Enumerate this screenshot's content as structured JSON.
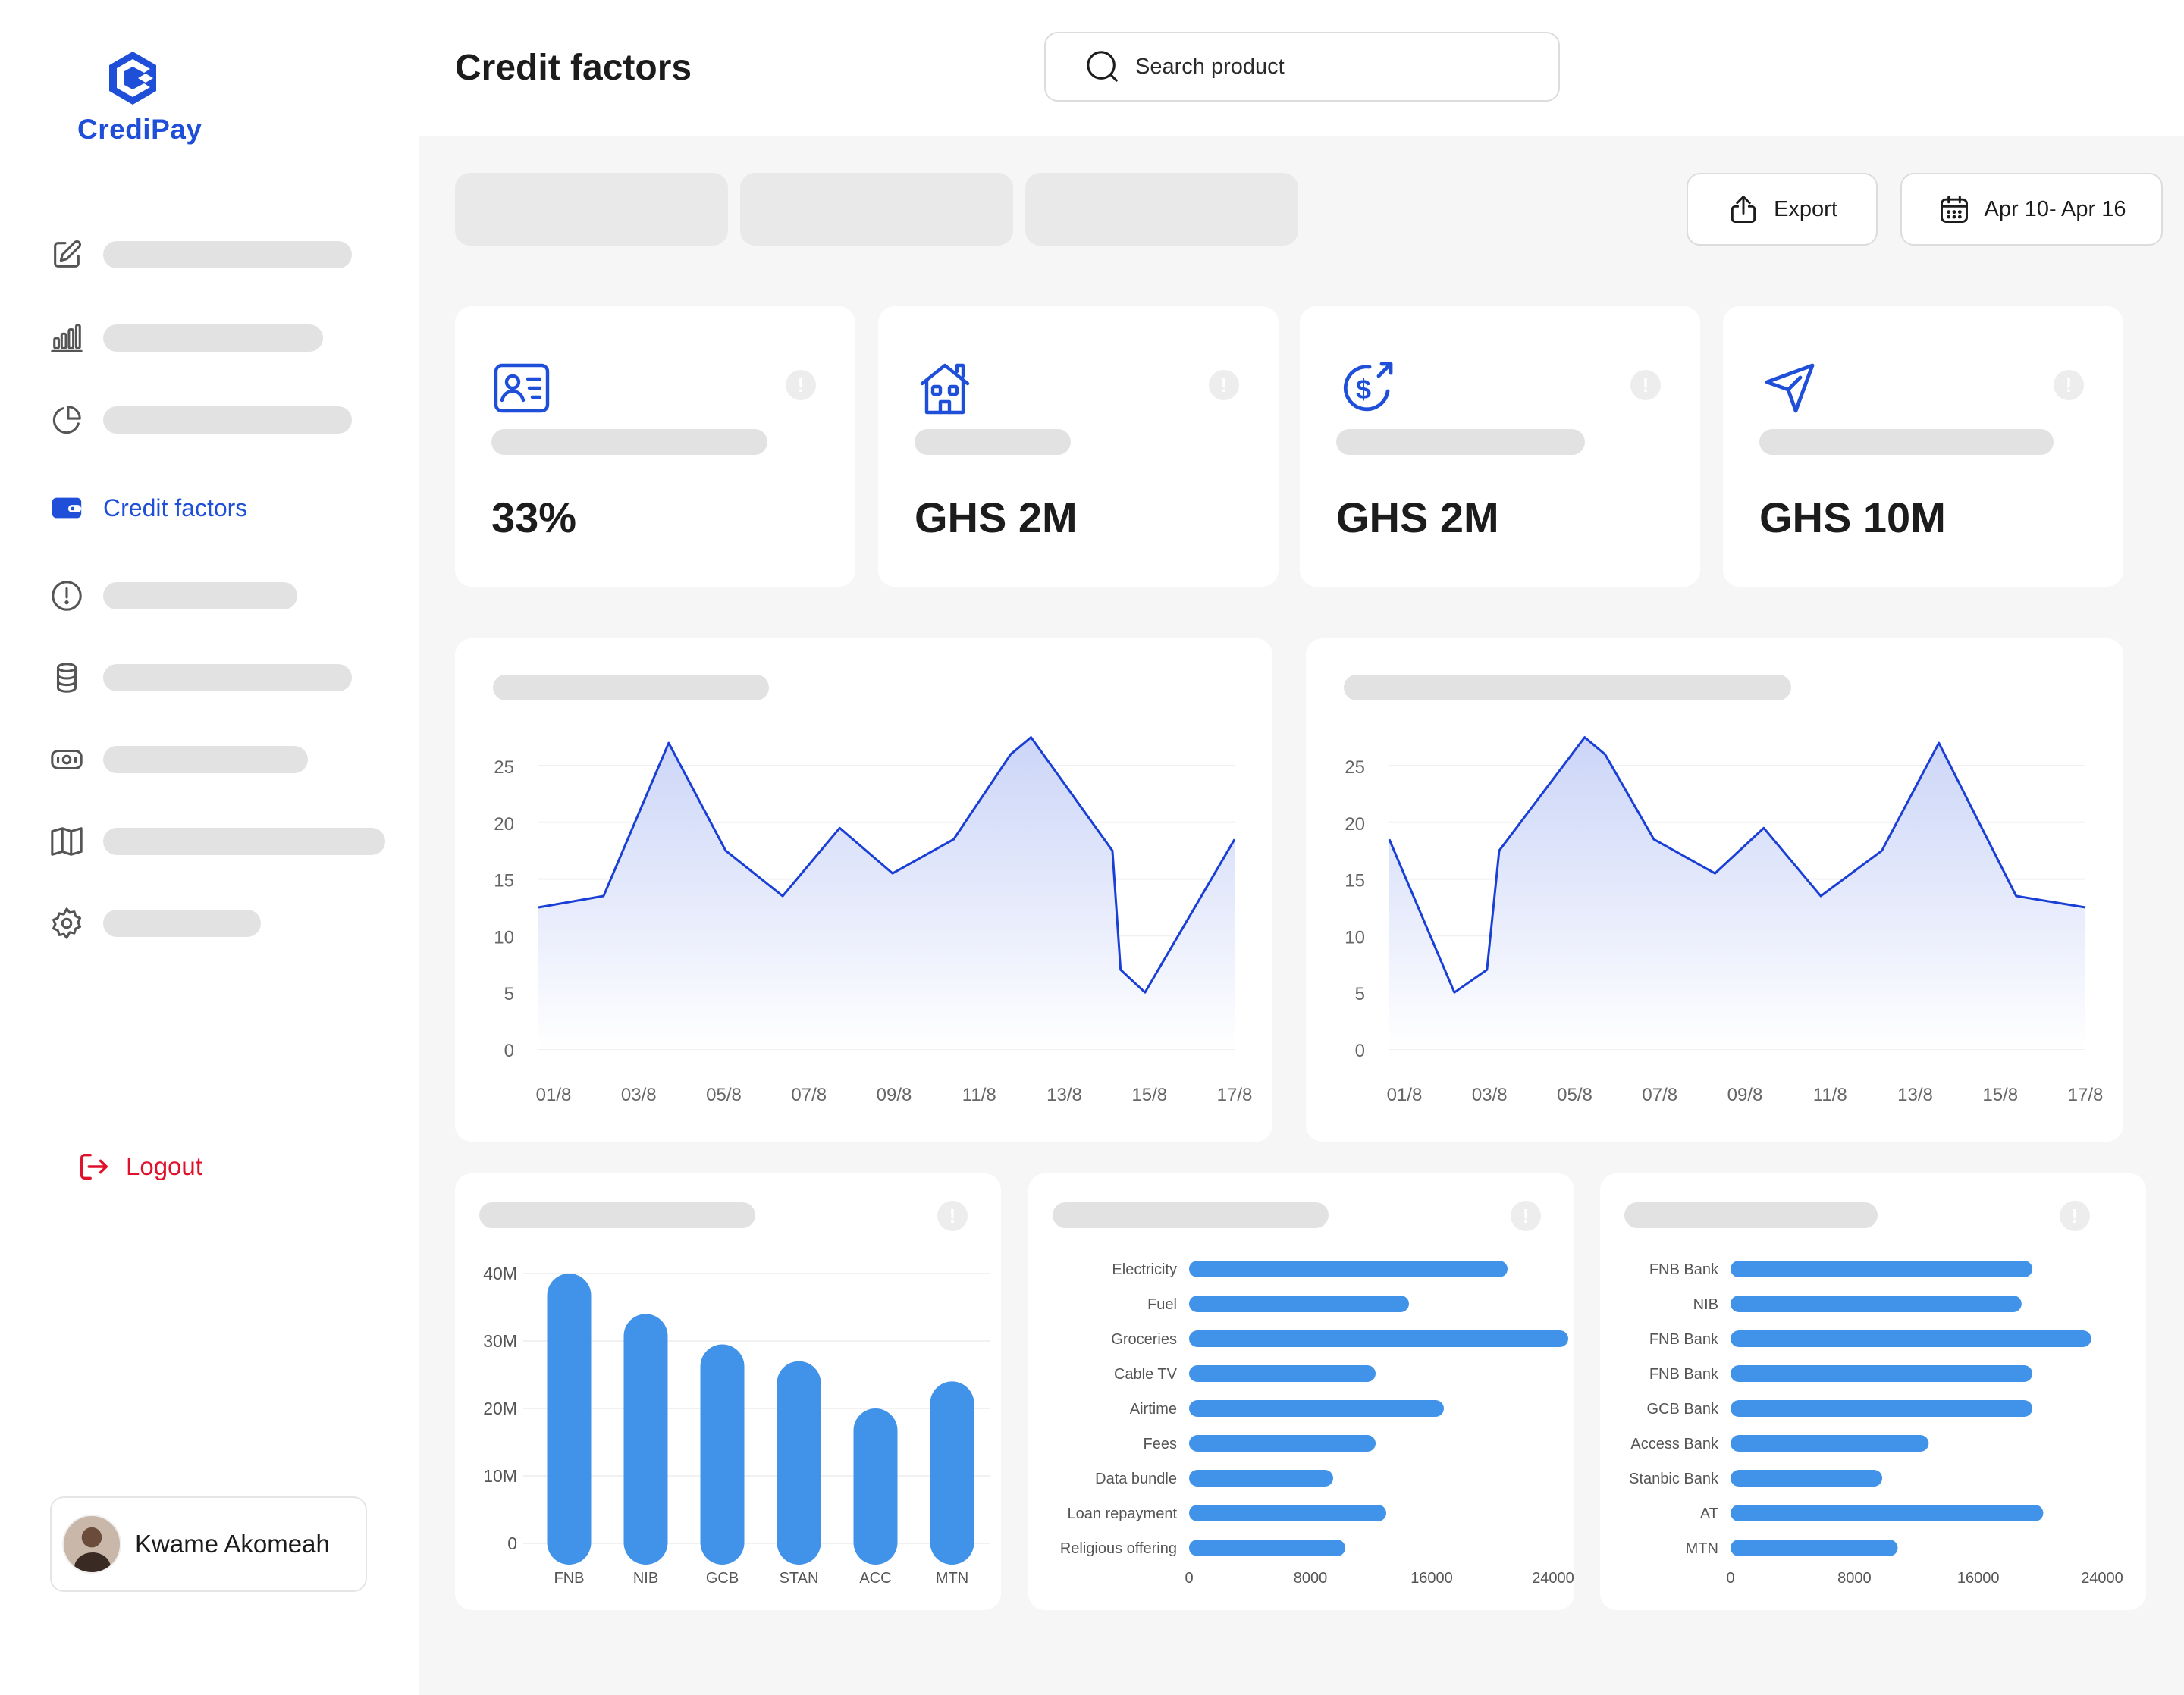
{
  "brand": {
    "name": "CrediPay",
    "color": "#1f4fd8"
  },
  "sidebar": {
    "items": [
      {
        "icon": "edit-icon",
        "active": false
      },
      {
        "icon": "bar-chart-icon",
        "active": false
      },
      {
        "icon": "pie-chart-icon",
        "active": false
      },
      {
        "icon": "wallet-icon",
        "active": true,
        "label": "Credit factors"
      },
      {
        "icon": "alert-circle-icon",
        "active": false
      },
      {
        "icon": "database-icon",
        "active": false
      },
      {
        "icon": "cash-icon",
        "active": false
      },
      {
        "icon": "book-icon",
        "active": false
      },
      {
        "icon": "settings-icon",
        "active": false
      }
    ],
    "logout_label": "Logout",
    "user_name": "Kwame Akomeah"
  },
  "header": {
    "title": "Credit factors",
    "search_placeholder": "Search product"
  },
  "toolbar": {
    "export_label": "Export",
    "date_range": "Apr 10- Apr 16"
  },
  "stats": [
    {
      "icon": "id-card-icon",
      "value": "33%"
    },
    {
      "icon": "house-icon",
      "value": "GHS 2M"
    },
    {
      "icon": "dollar-refresh-icon",
      "value": "GHS 2M"
    },
    {
      "icon": "send-icon",
      "value": "GHS 10M"
    }
  ],
  "info_glyph": "!",
  "chart_data": [
    {
      "type": "area",
      "x_labels": [
        "01/8",
        "03/8",
        "05/8",
        "07/8",
        "09/8",
        "11/8",
        "13/8",
        "15/8",
        "17/8"
      ],
      "ylim": [
        0,
        25
      ],
      "yticks": [
        0,
        5,
        10,
        15,
        20,
        25
      ],
      "points": [
        [
          0,
          12.5
        ],
        [
          1.6,
          13.5
        ],
        [
          3.2,
          27
        ],
        [
          4.6,
          17.5
        ],
        [
          6.0,
          13.5
        ],
        [
          7.4,
          19.5
        ],
        [
          8.7,
          15.5
        ],
        [
          10.2,
          18.5
        ],
        [
          11.6,
          26
        ],
        [
          12.1,
          27.5
        ],
        [
          14.1,
          17.5
        ],
        [
          14.3,
          7
        ],
        [
          14.9,
          5
        ],
        [
          17.1,
          18.5
        ]
      ],
      "grid": true
    },
    {
      "type": "area",
      "x_labels": [
        "01/8",
        "03/8",
        "05/8",
        "07/8",
        "09/8",
        "11/8",
        "13/8",
        "15/8",
        "17/8"
      ],
      "ylim": [
        0,
        25
      ],
      "yticks": [
        0,
        5,
        10,
        15,
        20,
        25
      ],
      "points": [
        [
          0,
          18.5
        ],
        [
          1.6,
          5
        ],
        [
          2.4,
          7
        ],
        [
          2.7,
          17.5
        ],
        [
          4.8,
          27.5
        ],
        [
          5.3,
          26
        ],
        [
          6.5,
          18.5
        ],
        [
          8.0,
          15.5
        ],
        [
          9.2,
          19.5
        ],
        [
          10.6,
          13.5
        ],
        [
          12.1,
          17.5
        ],
        [
          13.5,
          27
        ],
        [
          15.4,
          13.5
        ],
        [
          17.1,
          12.5
        ]
      ],
      "grid": true
    },
    {
      "type": "bar",
      "categories": [
        "FNB",
        "NIB",
        "GCB",
        "STAN",
        "ACC",
        "MTN"
      ],
      "values": [
        40,
        34,
        29.5,
        27,
        20,
        24
      ],
      "yticks": [
        "0",
        "10M",
        "20M",
        "30M",
        "40M"
      ],
      "ylim": [
        0,
        40
      ],
      "unit": "M"
    },
    {
      "type": "bar",
      "orientation": "horizontal",
      "categories": [
        "Electricity",
        "Fuel",
        "Groceries",
        "Cable TV",
        "Airtime",
        "Fees",
        "Data bundle",
        "Loan repayment",
        "Religious offering"
      ],
      "values": [
        21000,
        14500,
        25000,
        12300,
        16800,
        12300,
        9500,
        13000,
        10300
      ],
      "xticks": [
        "0",
        "8000",
        "16000",
        "24000"
      ],
      "xlim": [
        0,
        24000
      ]
    },
    {
      "type": "bar",
      "orientation": "horizontal",
      "categories": [
        "FNB Bank",
        "NIB",
        "FNB Bank",
        "FNB Bank",
        "GCB Bank",
        "Access Bank",
        "Stanbic Bank",
        "AT",
        "MTN"
      ],
      "values": [
        19500,
        18800,
        23300,
        19500,
        19500,
        12800,
        9800,
        20200,
        10800
      ],
      "xticks": [
        "0",
        "8000",
        "16000",
        "24000"
      ],
      "xlim": [
        0,
        24000
      ]
    }
  ]
}
